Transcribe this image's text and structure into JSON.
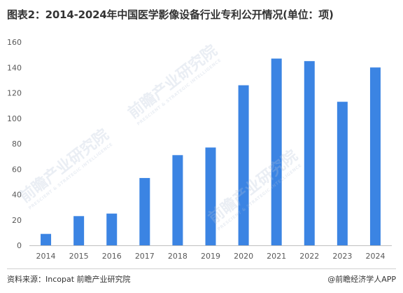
{
  "title": "图表2：2014-2024年中国医学影像设备行业专利公开情况(单位：项)",
  "source": "资料来源：Incopat 前瞻产业研究院",
  "brand": "@前瞻经济学人APP",
  "watermark": {
    "main": "前瞻产业研究院",
    "sub": "PRESCIENT & STRATEGIC INTELLIGENCE"
  },
  "colors": {
    "bar": "#3b84e3",
    "axis": "#bfbfbf",
    "text": "#595959"
  },
  "chart_data": {
    "type": "bar",
    "categories": [
      "2014",
      "2015",
      "2016",
      "2017",
      "2018",
      "2019",
      "2020",
      "2021",
      "2022",
      "2023",
      "2024"
    ],
    "values": [
      9,
      23,
      25,
      53,
      71,
      77,
      126,
      147,
      145,
      113,
      140
    ],
    "yticks": [
      0,
      20,
      40,
      60,
      80,
      100,
      120,
      140,
      160
    ],
    "ylim": [
      0,
      160
    ],
    "xlabel": "",
    "ylabel": "",
    "grid": false,
    "legend": "none"
  }
}
